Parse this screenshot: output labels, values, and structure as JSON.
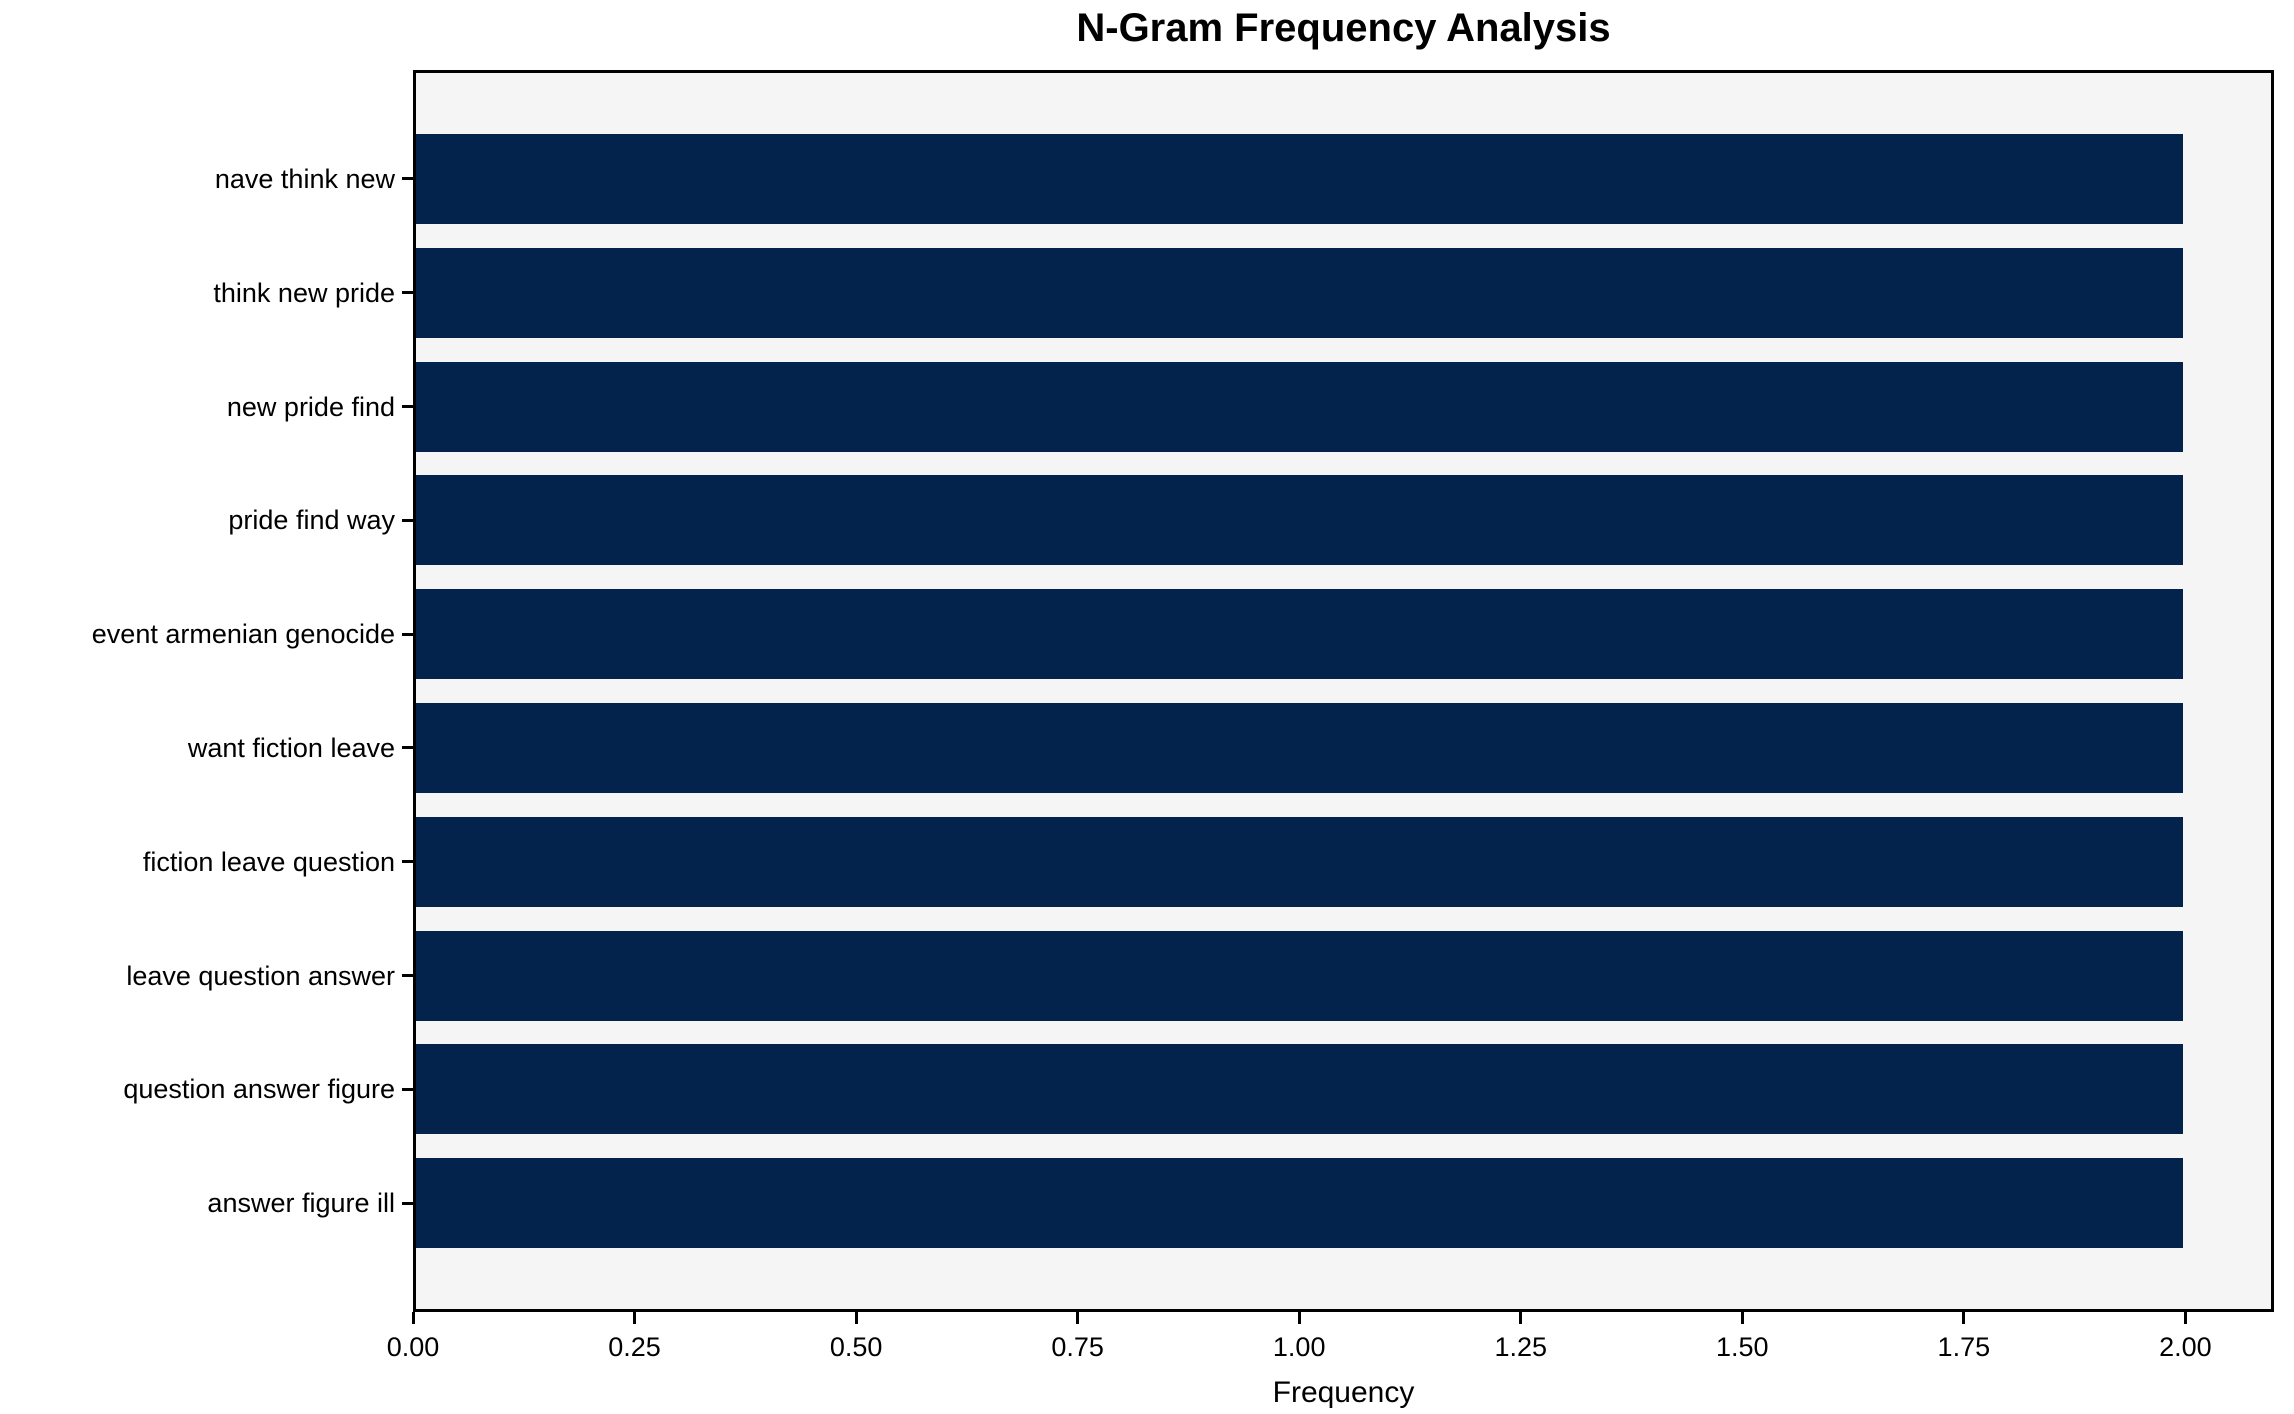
{
  "chart_data": {
    "type": "bar",
    "orientation": "horizontal",
    "title": "N-Gram Frequency Analysis",
    "xlabel": "Frequency",
    "ylabel": "",
    "categories": [
      "nave think new",
      "think new pride",
      "new pride find",
      "pride find way",
      "event armenian genocide",
      "want fiction leave",
      "fiction leave question",
      "leave question answer",
      "question answer figure",
      "answer figure ill"
    ],
    "values": [
      2,
      2,
      2,
      2,
      2,
      2,
      2,
      2,
      2,
      2
    ],
    "xlim": [
      0,
      2.1
    ],
    "x_tick_values": [
      0.0,
      0.25,
      0.5,
      0.75,
      1.0,
      1.25,
      1.5,
      1.75,
      2.0
    ],
    "x_tick_labels": [
      "0.00",
      "0.25",
      "0.50",
      "0.75",
      "1.00",
      "1.25",
      "1.50",
      "1.75",
      "2.00"
    ],
    "grid": false,
    "legend": false,
    "colors": {
      "bar": "#03234c",
      "plot_background": "#f5f5f5",
      "figure_background": "#ffffff",
      "frame": "#000000",
      "text": "#000000"
    }
  }
}
